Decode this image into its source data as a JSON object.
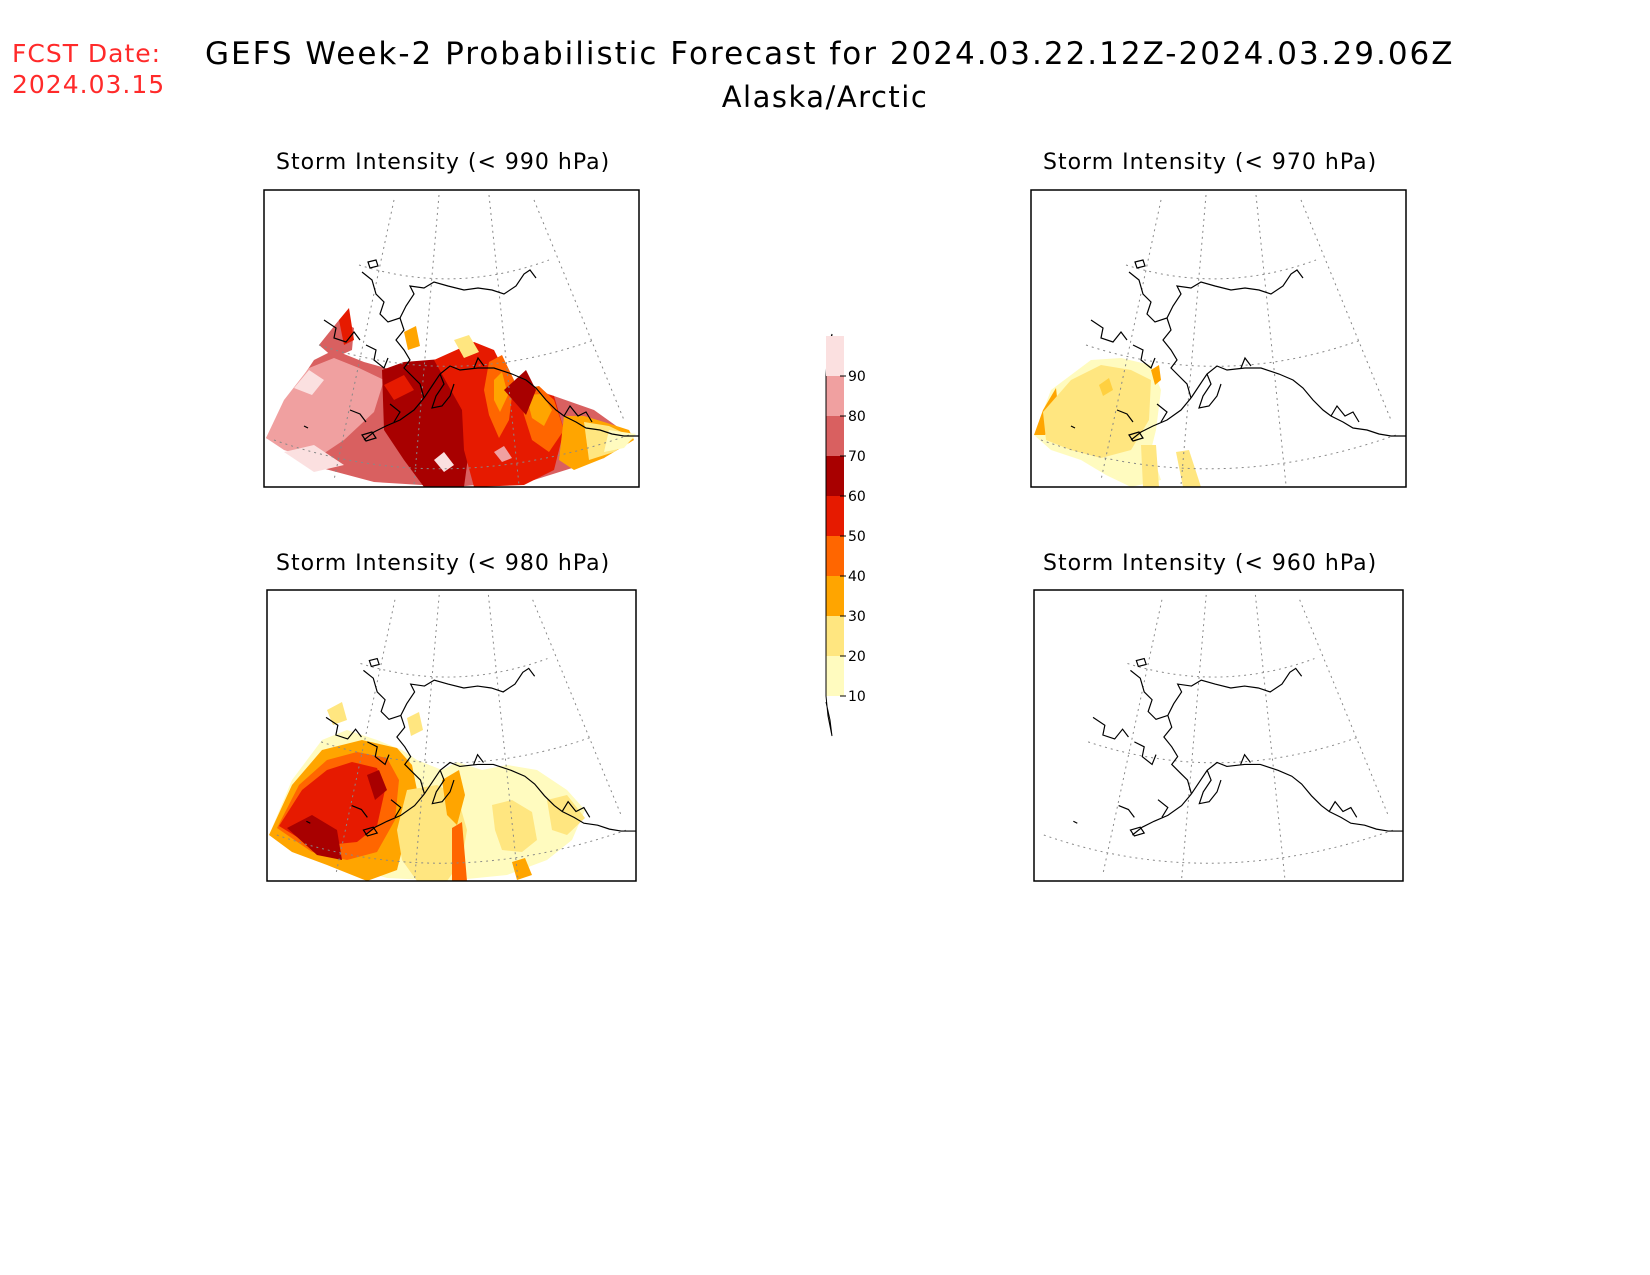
{
  "header": {
    "fcst_label": "FCST Date:",
    "fcst_date": "2024.03.15",
    "title": "GEFS Week-2 Probabilistic Forecast for 2024.03.22.12Z-2024.03.29.06Z",
    "region": "Alaska/Arctic"
  },
  "panels": [
    {
      "title": "Storm Intensity (< 990 hPa)"
    },
    {
      "title": "Storm Intensity (< 970 hPa)"
    },
    {
      "title": "Storm Intensity (< 980 hPa)"
    },
    {
      "title": "Storm Intensity (< 960 hPa)"
    }
  ],
  "colorbar": {
    "levels": [
      "10",
      "20",
      "30",
      "40",
      "50",
      "60",
      "70",
      "80",
      "90"
    ],
    "colors": [
      "#fffbbf",
      "#ffe680",
      "#ffa500",
      "#ff6600",
      "#e61a00",
      "#a80000",
      "#d96060",
      "#f0a0a0",
      "#fbe0e0"
    ]
  }
}
